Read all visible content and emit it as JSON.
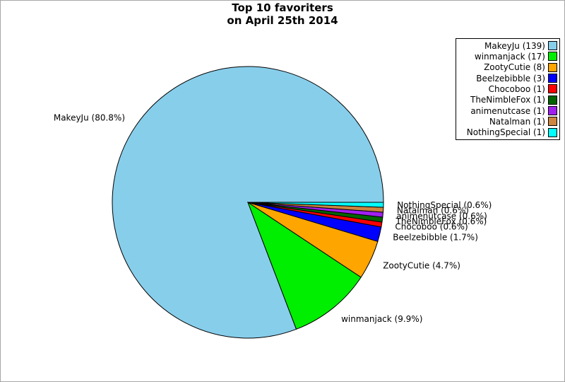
{
  "figure": {
    "title_line1": "Top 10 favoriters",
    "title_line2": "on April 25th 2014"
  },
  "colors": {
    "background": "#FFFFFF",
    "frame_border": "#A6A6A6",
    "legend_border": "#000000",
    "wedge_outline": "#000000",
    "text": "#000000"
  },
  "chart_data": {
    "type": "pie",
    "title": "Top 10 favoriters on April 25th 2014",
    "start_angle_deg": 0,
    "direction": "counterclockwise",
    "label_distance": 1.1,
    "legend_position": "upper-right",
    "legend_label_format": "name (count)",
    "slice_label_format": "name (pct%)",
    "series": [
      {
        "name": "MakeyJu",
        "count": 139,
        "pct": 80.8,
        "color": "#87CEEB"
      },
      {
        "name": "winmanjack",
        "count": 17,
        "pct": 9.9,
        "color": "#00EE00"
      },
      {
        "name": "ZootyCutie",
        "count": 8,
        "pct": 4.7,
        "color": "#FFA500"
      },
      {
        "name": "Beelzebibble",
        "count": 3,
        "pct": 1.7,
        "color": "#0000FF"
      },
      {
        "name": "Chocoboo",
        "count": 1,
        "pct": 0.6,
        "color": "#FF0000"
      },
      {
        "name": "TheNimbleFox",
        "count": 1,
        "pct": 0.6,
        "color": "#006400"
      },
      {
        "name": "animenutcase",
        "count": 1,
        "pct": 0.6,
        "color": "#A020F0"
      },
      {
        "name": "Natalman",
        "count": 1,
        "pct": 0.6,
        "color": "#CD853F"
      },
      {
        "name": "NothingSpecial",
        "count": 1,
        "pct": 0.6,
        "color": "#00FFFF"
      }
    ]
  }
}
